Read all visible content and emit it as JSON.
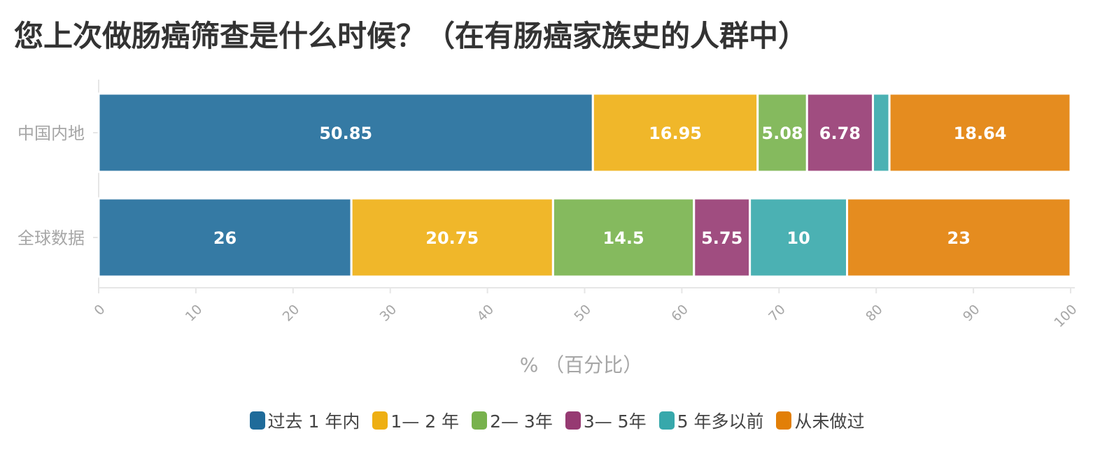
{
  "chart_data": {
    "type": "bar",
    "orientation": "horizontal",
    "stacked": true,
    "title": "您上次做肠癌筛查是什么时候？（在有肠癌家族史的人群中）",
    "xlabel": "% （百分比）",
    "ylabel": "",
    "xlim": [
      0,
      100
    ],
    "xticks": [
      "0",
      "10",
      "20",
      "30",
      "40",
      "50",
      "60",
      "70",
      "80",
      "90",
      "100"
    ],
    "categories": [
      "中国内地",
      "全球数据"
    ],
    "series": [
      {
        "name": "过去 1 年内",
        "color": "#1f6b9a",
        "values": [
          50.85,
          26
        ]
      },
      {
        "name": "1— 2 年",
        "color": "#eeaf13",
        "values": [
          16.95,
          20.75
        ]
      },
      {
        "name": "2— 3年",
        "color": "#78b24d",
        "values": [
          5.08,
          14.5
        ]
      },
      {
        "name": "3— 5年",
        "color": "#963a72",
        "values": [
          6.78,
          5.75
        ]
      },
      {
        "name": "5 年多以前",
        "color": "#37a8ab",
        "values": [
          1.7,
          10
        ]
      },
      {
        "name": "从未做过",
        "color": "#e27f07",
        "values": [
          18.64,
          23
        ]
      }
    ],
    "data_labels": [
      [
        "50.85",
        "16.95",
        "5.08",
        "6.78",
        "",
        "18.64"
      ],
      [
        "26",
        "20.75",
        "14.5",
        "5.75",
        "10",
        "23"
      ]
    ],
    "legend_position": "bottom-center",
    "grid": false
  }
}
